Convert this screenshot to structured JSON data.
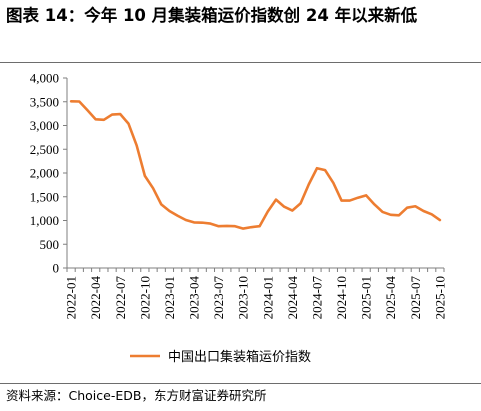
{
  "header": {
    "title": "图表 14：今年 10 月集装箱运价指数创 24 年以来新低"
  },
  "footer": {
    "source": "资料来源：Choice-EDB，东方财富证券研究所"
  },
  "chart_data": {
    "type": "line",
    "title": "图表 14：今年 10 月集装箱运价指数创 24 年以来新低",
    "xlabel": "",
    "ylabel": "",
    "ylim": [
      0,
      4000
    ],
    "yticks": [
      0,
      500,
      1000,
      1500,
      2000,
      2500,
      3000,
      3500,
      4000
    ],
    "ytick_labels": [
      "0",
      "500",
      "1,000",
      "1,500",
      "2,000",
      "2,500",
      "3,000",
      "3,500",
      "4,000"
    ],
    "xtick_labels": [
      "2022-01",
      "2022-04",
      "2022-07",
      "2022-10",
      "2023-01",
      "2023-04",
      "2023-07",
      "2023-10",
      "2024-01",
      "2024-04",
      "2024-07",
      "2024-10",
      "2025-01",
      "2025-04",
      "2025-07",
      "2025-10"
    ],
    "grid": false,
    "legend_position": "bottom",
    "x": [
      "2022-01",
      "2022-02",
      "2022-03",
      "2022-04",
      "2022-05",
      "2022-06",
      "2022-07",
      "2022-08",
      "2022-09",
      "2022-10",
      "2022-11",
      "2022-12",
      "2023-01",
      "2023-02",
      "2023-03",
      "2023-04",
      "2023-05",
      "2023-06",
      "2023-07",
      "2023-08",
      "2023-09",
      "2023-10",
      "2023-11",
      "2023-12",
      "2024-01",
      "2024-02",
      "2024-03",
      "2024-04",
      "2024-05",
      "2024-06",
      "2024-07",
      "2024-08",
      "2024-09",
      "2024-10",
      "2024-11",
      "2024-12",
      "2025-01",
      "2025-02",
      "2025-03",
      "2025-04",
      "2025-05",
      "2025-06",
      "2025-07",
      "2025-08",
      "2025-09",
      "2025-10"
    ],
    "series": [
      {
        "name": "中国出口集装箱运价指数",
        "color": "#ed7d31",
        "values": [
          3510,
          3505,
          3320,
          3130,
          3120,
          3230,
          3240,
          3040,
          2580,
          1940,
          1680,
          1340,
          1200,
          1100,
          1010,
          960,
          955,
          935,
          880,
          885,
          880,
          830,
          860,
          880,
          1190,
          1440,
          1290,
          1210,
          1360,
          1760,
          2100,
          2060,
          1790,
          1420,
          1420,
          1480,
          1530,
          1340,
          1180,
          1120,
          1110,
          1270,
          1300,
          1200,
          1130,
          1010
        ]
      }
    ]
  }
}
